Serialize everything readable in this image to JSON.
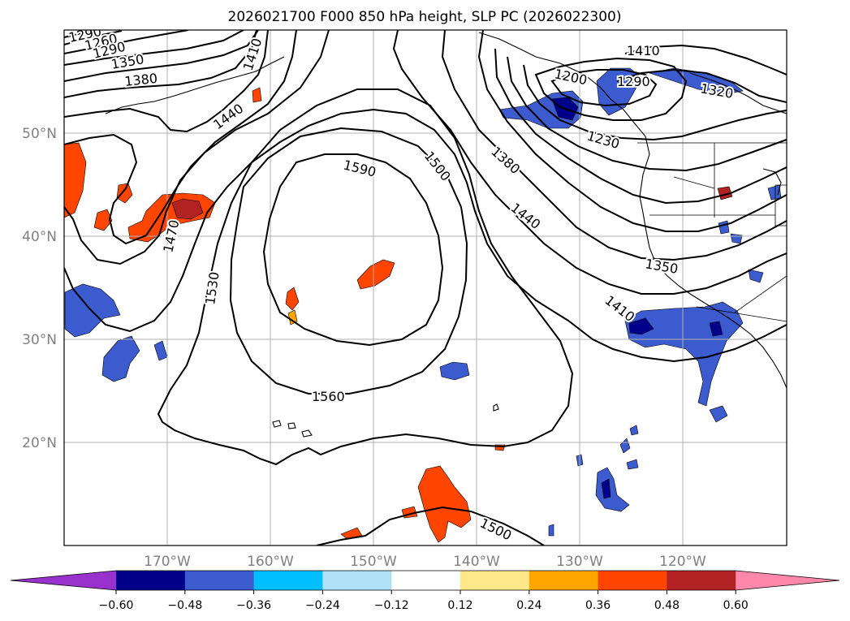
{
  "title": "2026021700 F000 850 hPa height, SLP PC (2026022300)",
  "map": {
    "lon_ticks": [
      "170°W",
      "160°W",
      "150°W",
      "140°W",
      "130°W",
      "120°W"
    ],
    "lat_ticks": [
      "50°N",
      "40°N",
      "30°N",
      "20°N"
    ],
    "extent": {
      "lon": [
        -180,
        -110
      ],
      "lat": [
        10,
        60
      ]
    }
  },
  "colorbar": {
    "ticks": [
      "−0.60",
      "−0.48",
      "−0.36",
      "−0.24",
      "−0.12",
      "0.12",
      "0.24",
      "0.36",
      "0.48",
      "0.60"
    ],
    "colors": [
      "#9932cc",
      "#00008b",
      "#3b5bce",
      "#00bfff",
      "#b0e0f8",
      "#ffffff",
      "#ffe88a",
      "#ffa500",
      "#ff4500",
      "#b22222",
      "#ff88aa"
    ]
  },
  "contour_labels": [
    "1290",
    "1260",
    "1290",
    "1350",
    "1380",
    "1410",
    "1440",
    "1470",
    "1530",
    "1590",
    "1500",
    "1560",
    "1380",
    "1440",
    "1350",
    "1410",
    "1410",
    "1290",
    "1320",
    "1230",
    "1200",
    "1500"
  ],
  "colors": {
    "contour": "#000000",
    "grid": "#b0b0b0",
    "ticklabel": "#808080"
  }
}
